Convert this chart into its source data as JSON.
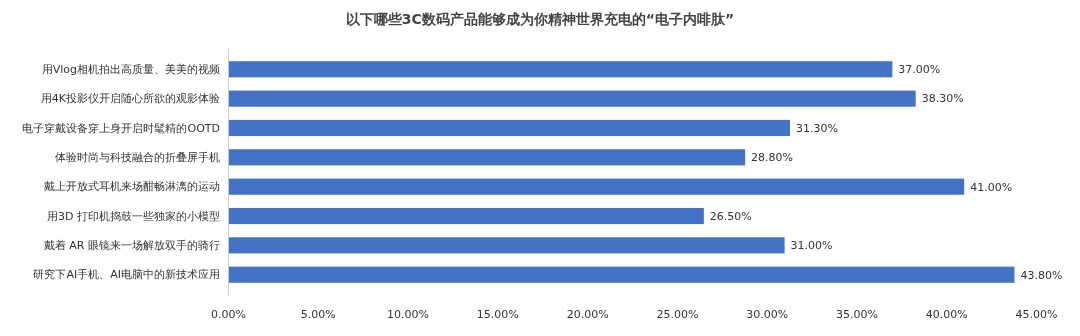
{
  "chart_data": {
    "type": "bar",
    "orientation": "horizontal",
    "title": "以下哪些3C数码产品能够成为你精神世界充电的“电子内啡肽”",
    "categories": [
      "用Vlog相机拍出高质量、美美的视频",
      "用4K投影仪开启随心所欲的观影体验",
      "电子穿戴设备穿上身开启时髦精的OOTD",
      "体验时尚与科技融合的折叠屏手机",
      "戴上开放式耳机来场酣畅淋漓的运动",
      "用3D 打印机捣鼓一些独家的小模型",
      "戴着 AR 眼镜来一场解放双手的骑行",
      "研究下AI手机、AI电脑中的新技术应用"
    ],
    "values": [
      37,
      38.3,
      31.3,
      28.8,
      41,
      26.5,
      31,
      43.8
    ],
    "value_labels": [
      "37.00%",
      "38.30%",
      "31.30%",
      "28.80%",
      "41.00%",
      "26.50%",
      "31.00%",
      "43.80%"
    ],
    "color": "#4472c4",
    "xlim": [
      0,
      45
    ],
    "xticks": [
      {
        "value": 0,
        "label": "0.00%"
      },
      {
        "value": 5,
        "label": "5.00%"
      },
      {
        "value": 10,
        "label": "10.00%"
      },
      {
        "value": 15,
        "label": "15.00%"
      },
      {
        "value": 20,
        "label": "20.00%"
      },
      {
        "value": 25,
        "label": "25.00%"
      },
      {
        "value": 30,
        "label": "30.00%"
      },
      {
        "value": 35,
        "label": "35.00%"
      },
      {
        "value": 40,
        "label": "40.00%"
      },
      {
        "value": 45,
        "label": "45.00%"
      }
    ],
    "grid": false
  }
}
